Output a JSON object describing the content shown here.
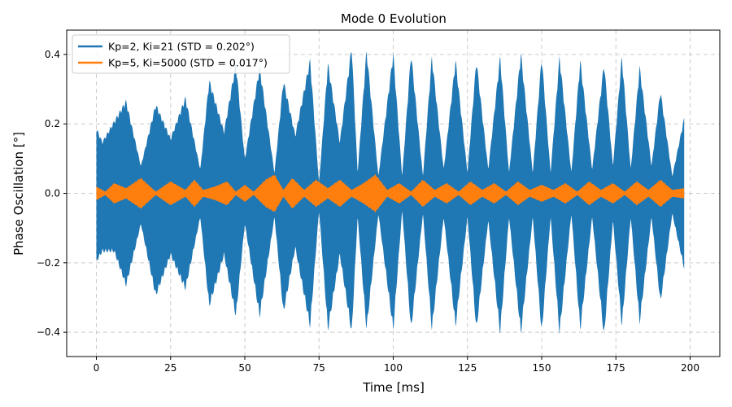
{
  "chart_data": {
    "type": "line",
    "title": "Mode 0 Evolution",
    "xlabel": "Time [ms]",
    "ylabel": "Phase Oscillation [°]",
    "xlim": [
      -10,
      210
    ],
    "ylim": [
      -0.47,
      0.47
    ],
    "xticks": [
      0,
      25,
      50,
      75,
      100,
      125,
      150,
      175,
      200
    ],
    "xtick_labels": [
      "0",
      "25",
      "50",
      "75",
      "100",
      "125",
      "150",
      "175",
      "200"
    ],
    "yticks": [
      -0.4,
      -0.2,
      0.0,
      0.2,
      0.4
    ],
    "ytick_labels": [
      "−0.4",
      "−0.2",
      "0.0",
      "0.2",
      "0.4"
    ],
    "grid": true,
    "legend_position": "top-left",
    "series": [
      {
        "name": "Kp=2, Ki=21 (STD = 0.202°)",
        "color": "#1f77b4",
        "envelope": {
          "t": [
            0,
            2,
            6,
            10,
            15,
            20,
            25,
            30,
            35,
            38,
            43,
            47,
            50,
            55,
            60,
            63,
            67,
            72,
            75,
            78,
            82,
            86,
            88,
            91,
            95,
            100,
            103,
            106,
            110,
            113,
            117,
            121,
            125,
            128,
            132,
            136,
            139,
            143,
            147,
            150,
            153,
            156,
            160,
            163,
            167,
            171,
            174,
            177,
            180,
            183,
            187,
            190,
            194,
            198
          ],
          "upper": [
            0.19,
            0.15,
            0.21,
            0.27,
            0.08,
            0.26,
            0.16,
            0.28,
            0.07,
            0.33,
            0.18,
            0.38,
            0.1,
            0.37,
            0.06,
            0.33,
            0.17,
            0.39,
            0.03,
            0.38,
            0.15,
            0.43,
            0.06,
            0.42,
            0.05,
            0.41,
            0.05,
            0.41,
            0.05,
            0.4,
            0.07,
            0.39,
            0.06,
            0.39,
            0.07,
            0.4,
            0.06,
            0.41,
            0.06,
            0.4,
            0.06,
            0.4,
            0.06,
            0.39,
            0.07,
            0.38,
            0.08,
            0.4,
            0.07,
            0.37,
            0.08,
            0.3,
            0.05,
            0.22
          ],
          "lower": [
            -0.2,
            -0.17,
            -0.17,
            -0.27,
            -0.09,
            -0.3,
            -0.18,
            -0.28,
            -0.07,
            -0.33,
            -0.18,
            -0.36,
            -0.09,
            -0.36,
            -0.07,
            -0.35,
            -0.16,
            -0.39,
            -0.05,
            -0.4,
            -0.18,
            -0.41,
            -0.07,
            -0.4,
            -0.06,
            -0.4,
            -0.05,
            -0.4,
            -0.06,
            -0.4,
            -0.07,
            -0.39,
            -0.07,
            -0.4,
            -0.08,
            -0.41,
            -0.07,
            -0.41,
            -0.07,
            -0.41,
            -0.07,
            -0.41,
            -0.06,
            -0.4,
            -0.07,
            -0.42,
            -0.08,
            -0.39,
            -0.07,
            -0.38,
            -0.07,
            -0.32,
            -0.06,
            -0.22
          ]
        }
      },
      {
        "name": "Kp=5, Ki=5000 (STD = 0.017°)",
        "color": "#ff7f0e",
        "envelope": {
          "t": [
            0,
            3,
            6,
            10,
            15,
            20,
            25,
            30,
            33,
            36,
            40,
            44,
            47,
            50,
            53,
            57,
            60,
            63,
            66,
            70,
            74,
            78,
            82,
            86,
            90,
            94,
            98,
            102,
            106,
            110,
            114,
            118,
            122,
            126,
            130,
            134,
            138,
            142,
            146,
            150,
            154,
            158,
            162,
            166,
            170,
            174,
            178,
            182,
            186,
            190,
            194,
            198
          ],
          "upper": [
            0.02,
            0.005,
            0.03,
            0.015,
            0.045,
            0.005,
            0.035,
            0.01,
            0.04,
            0.01,
            0.02,
            0.035,
            0.005,
            0.025,
            0.005,
            0.04,
            0.055,
            0.01,
            0.045,
            0.01,
            0.04,
            0.015,
            0.04,
            0.01,
            0.03,
            0.055,
            0.01,
            0.03,
            0.005,
            0.04,
            0.01,
            0.03,
            0.005,
            0.035,
            0.01,
            0.03,
            0.005,
            0.035,
            0.01,
            0.025,
            0.01,
            0.03,
            0.005,
            0.035,
            0.01,
            0.03,
            0.005,
            0.035,
            0.01,
            0.04,
            0.01,
            0.015
          ],
          "lower": [
            -0.02,
            -0.005,
            -0.03,
            -0.015,
            -0.045,
            -0.005,
            -0.035,
            -0.01,
            -0.04,
            -0.01,
            -0.02,
            -0.035,
            -0.005,
            -0.025,
            -0.005,
            -0.04,
            -0.055,
            -0.01,
            -0.045,
            -0.01,
            -0.04,
            -0.015,
            -0.04,
            -0.01,
            -0.03,
            -0.055,
            -0.01,
            -0.03,
            -0.005,
            -0.04,
            -0.01,
            -0.03,
            -0.005,
            -0.035,
            -0.01,
            -0.03,
            -0.005,
            -0.035,
            -0.01,
            -0.025,
            -0.01,
            -0.03,
            -0.005,
            -0.035,
            -0.01,
            -0.03,
            -0.005,
            -0.035,
            -0.01,
            -0.04,
            -0.01,
            -0.015
          ]
        }
      }
    ]
  }
}
